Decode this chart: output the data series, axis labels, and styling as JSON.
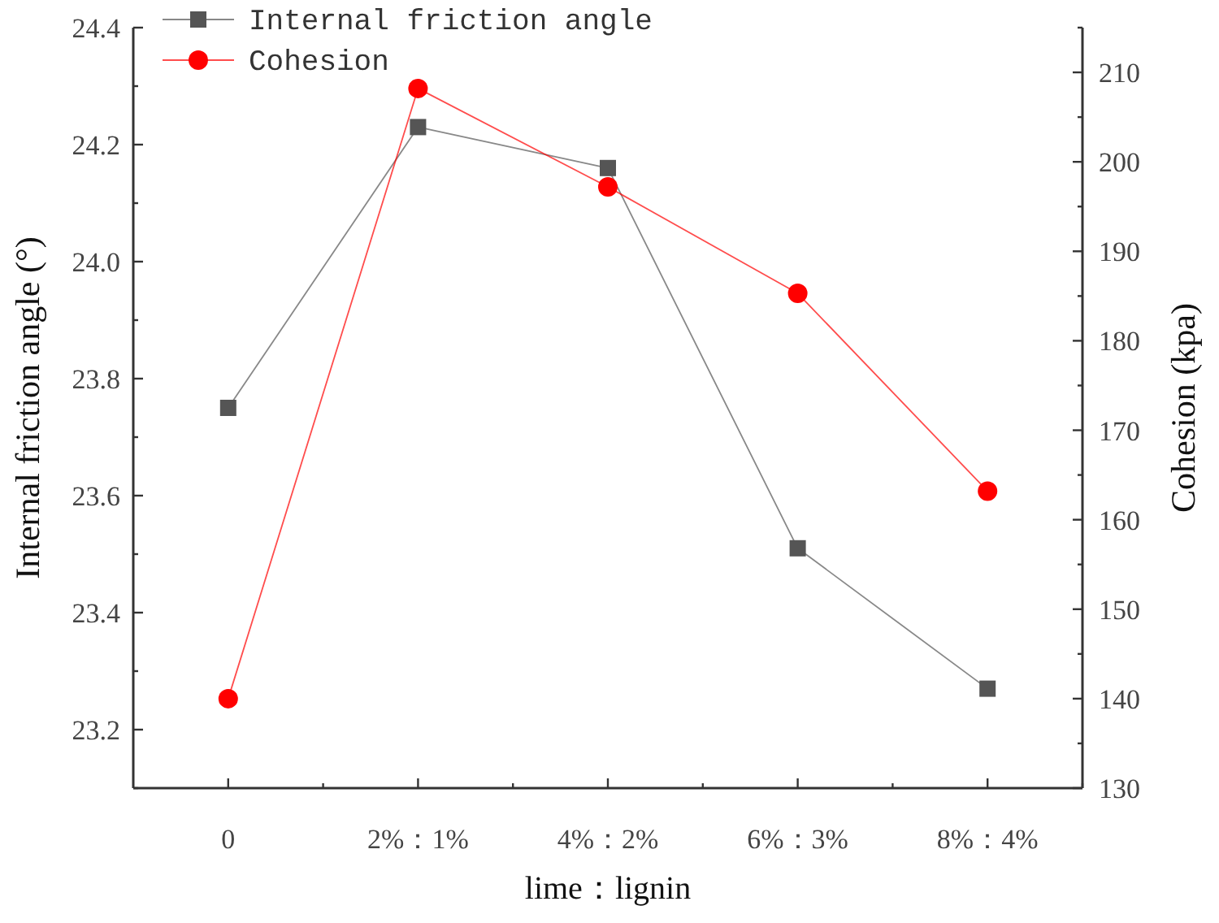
{
  "chart_data": {
    "type": "line",
    "xlabel": "lime：lignin",
    "ylabel": "Internal friction angle (°)",
    "y2label": "Cohesion (kpa)",
    "categories": [
      "0",
      "2%：1%",
      "4%：2%",
      "6%：3%",
      "8%：4%"
    ],
    "series": [
      {
        "name": "Internal friction angle",
        "color": "#555555",
        "marker": "square",
        "values": [
          23.75,
          24.23,
          24.16,
          23.51,
          23.27
        ]
      },
      {
        "name": "Cohesion",
        "color": "#ff0000",
        "marker": "circle",
        "axis": "y2",
        "values": [
          140,
          208.2,
          197.2,
          185.3,
          163.2
        ]
      }
    ],
    "ylim": [
      23.1,
      24.4
    ],
    "yticks": [
      {
        "value": 23.1,
        "label": null
      },
      23.2,
      {
        "value": 23.3,
        "label": null
      },
      23.4,
      {
        "value": 23.5,
        "label": null
      },
      23.6,
      {
        "value": 23.7,
        "label": null
      },
      23.8,
      {
        "value": 23.9,
        "label": null
      },
      {
        "value": 24.0,
        "label": "24.0"
      },
      {
        "value": 24.1,
        "label": null
      },
      24.2,
      {
        "value": 24.3,
        "label": null
      },
      24.4
    ],
    "y2lim": [
      130,
      215
    ],
    "y2ticks": [
      130,
      {
        "value": 135,
        "label": null
      },
      140,
      {
        "value": 145,
        "label": null
      },
      150,
      {
        "value": 155,
        "label": null
      },
      160,
      {
        "value": 165,
        "label": null
      },
      170,
      {
        "value": 175,
        "label": null
      },
      180,
      {
        "value": 185,
        "label": null
      },
      190,
      {
        "value": 195,
        "label": null
      },
      200,
      {
        "value": 205,
        "label": null
      },
      210,
      {
        "value": 215,
        "label": null
      }
    ],
    "legend": "top left",
    "grid": false
  }
}
